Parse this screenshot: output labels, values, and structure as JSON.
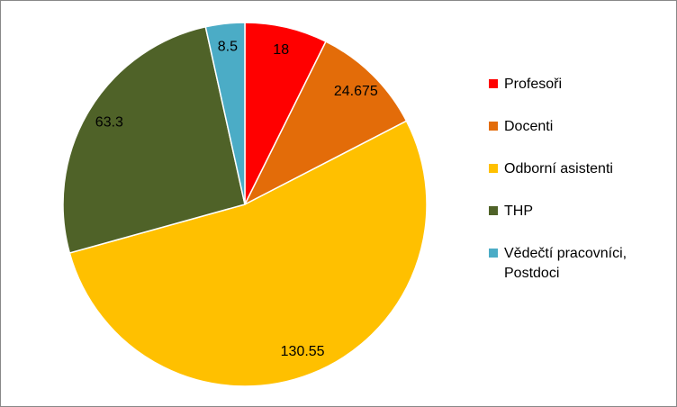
{
  "chart_data": {
    "type": "pie",
    "categories": [
      "Profesoři",
      "Docenti",
      "Odborní asistenti",
      "THP",
      "Vědečtí pracovníci, Postdoci"
    ],
    "values": [
      18,
      24.675,
      130.55,
      63.3,
      8.5
    ],
    "colors": [
      "#ff0000",
      "#e36c09",
      "#ffc000",
      "#4f6228",
      "#4bacc6"
    ],
    "legend": "right"
  }
}
